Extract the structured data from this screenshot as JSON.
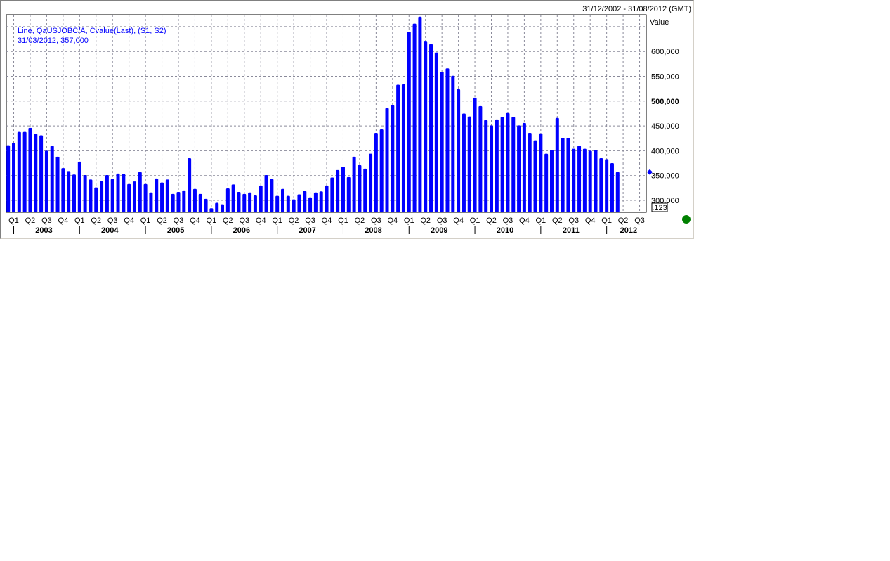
{
  "header": {
    "date_range": "31/12/2002 - 31/08/2012 (GMT)"
  },
  "legend": {
    "series_line": "Line, QaUSJOBC/A, Cvalue(Last), (S1, S2)",
    "last_point": "31/03/2012, 357,000"
  },
  "axis": {
    "y_title": "Value",
    "scale_button": ".123"
  },
  "colors": {
    "bar": "#0000ff",
    "grid": "#8a8a9a",
    "status_dot": "#008000",
    "legend_text": "#0000ff"
  },
  "chart_data": {
    "type": "bar",
    "title": "",
    "xlabel": "",
    "ylabel": "Value",
    "ylim": [
      273000,
      672000
    ],
    "y_ticks": [
      300000,
      350000,
      400000,
      450000,
      500000,
      550000,
      600000
    ],
    "y_tick_labels": [
      "300,000",
      "350,000",
      "400,000",
      "450,000",
      "500,000",
      "550,000",
      "600,000"
    ],
    "grid": true,
    "x_range": [
      "2002-12",
      "2012-08"
    ],
    "quarter_ticks": [
      "2003-01",
      "2003-04",
      "2003-07",
      "2003-10",
      "2004-01",
      "2004-04",
      "2004-07",
      "2004-10",
      "2005-01",
      "2005-04",
      "2005-07",
      "2005-10",
      "2006-01",
      "2006-04",
      "2006-07",
      "2006-10",
      "2007-01",
      "2007-04",
      "2007-07",
      "2007-10",
      "2008-01",
      "2008-04",
      "2008-07",
      "2008-10",
      "2009-01",
      "2009-04",
      "2009-07",
      "2009-10",
      "2010-01",
      "2010-04",
      "2010-07",
      "2010-10",
      "2011-01",
      "2011-04",
      "2011-07",
      "2011-10",
      "2012-01",
      "2012-04",
      "2012-07"
    ],
    "quarter_labels": [
      "Q1",
      "Q2",
      "Q3",
      "Q4",
      "Q1",
      "Q2",
      "Q3",
      "Q4",
      "Q1",
      "Q2",
      "Q3",
      "Q4",
      "Q1",
      "Q2",
      "Q3",
      "Q4",
      "Q1",
      "Q2",
      "Q3",
      "Q4",
      "Q1",
      "Q2",
      "Q3",
      "Q4",
      "Q1",
      "Q2",
      "Q3",
      "Q4",
      "Q1",
      "Q2",
      "Q3",
      "Q4",
      "Q1",
      "Q2",
      "Q3",
      "Q4",
      "Q1",
      "Q2",
      "Q3"
    ],
    "year_labels": [
      "2003",
      "2004",
      "2005",
      "2006",
      "2007",
      "2008",
      "2009",
      "2010",
      "2011",
      "2012"
    ],
    "current_value": 357000,
    "categories": [
      "2002-12",
      "2003-01",
      "2003-02",
      "2003-03",
      "2003-04",
      "2003-05",
      "2003-06",
      "2003-07",
      "2003-08",
      "2003-09",
      "2003-10",
      "2003-11",
      "2003-12",
      "2004-01",
      "2004-02",
      "2004-03",
      "2004-04",
      "2004-05",
      "2004-06",
      "2004-07",
      "2004-08",
      "2004-09",
      "2004-10",
      "2004-11",
      "2004-12",
      "2005-01",
      "2005-02",
      "2005-03",
      "2005-04",
      "2005-05",
      "2005-06",
      "2005-07",
      "2005-08",
      "2005-09",
      "2005-10",
      "2005-11",
      "2005-12",
      "2006-01",
      "2006-02",
      "2006-03",
      "2006-04",
      "2006-05",
      "2006-06",
      "2006-07",
      "2006-08",
      "2006-09",
      "2006-10",
      "2006-11",
      "2006-12",
      "2007-01",
      "2007-02",
      "2007-03",
      "2007-04",
      "2007-05",
      "2007-06",
      "2007-07",
      "2007-08",
      "2007-09",
      "2007-10",
      "2007-11",
      "2007-12",
      "2008-01",
      "2008-02",
      "2008-03",
      "2008-04",
      "2008-05",
      "2008-06",
      "2008-07",
      "2008-08",
      "2008-09",
      "2008-10",
      "2008-11",
      "2008-12",
      "2009-01",
      "2009-02",
      "2009-03",
      "2009-04",
      "2009-05",
      "2009-06",
      "2009-07",
      "2009-08",
      "2009-09",
      "2009-10",
      "2009-11",
      "2009-12",
      "2010-01",
      "2010-02",
      "2010-03",
      "2010-04",
      "2010-05",
      "2010-06",
      "2010-07",
      "2010-08",
      "2010-09",
      "2010-10",
      "2010-11",
      "2010-12",
      "2011-01",
      "2011-02",
      "2011-03",
      "2011-04",
      "2011-05",
      "2011-06",
      "2011-07",
      "2011-08",
      "2011-09",
      "2011-10",
      "2011-11",
      "2011-12",
      "2012-01",
      "2012-02",
      "2012-03"
    ],
    "values": [
      411000,
      416000,
      438000,
      438000,
      446000,
      434000,
      431000,
      400000,
      410000,
      388000,
      365000,
      359000,
      352000,
      378000,
      351000,
      342000,
      326000,
      339000,
      351000,
      343000,
      354000,
      353000,
      333000,
      338000,
      357000,
      333000,
      316000,
      344000,
      336000,
      342000,
      313000,
      317000,
      320000,
      385000,
      323000,
      313000,
      303000,
      284000,
      295000,
      292000,
      324000,
      332000,
      317000,
      313000,
      316000,
      310000,
      330000,
      351000,
      343000,
      309000,
      323000,
      309000,
      302000,
      312000,
      319000,
      306000,
      316000,
      318000,
      330000,
      346000,
      361000,
      368000,
      347000,
      388000,
      371000,
      364000,
      394000,
      436000,
      443000,
      486000,
      492000,
      533000,
      534000,
      640000,
      656000,
      670000,
      620000,
      615000,
      598000,
      559000,
      566000,
      551000,
      524000,
      475000,
      469000,
      507000,
      490000,
      462000,
      451000,
      463000,
      468000,
      476000,
      468000,
      451000,
      456000,
      436000,
      421000,
      435000,
      394000,
      402000,
      466000,
      426000,
      426000,
      404000,
      410000,
      404000,
      400000,
      401000,
      385000,
      383000,
      375000,
      357000
    ]
  }
}
